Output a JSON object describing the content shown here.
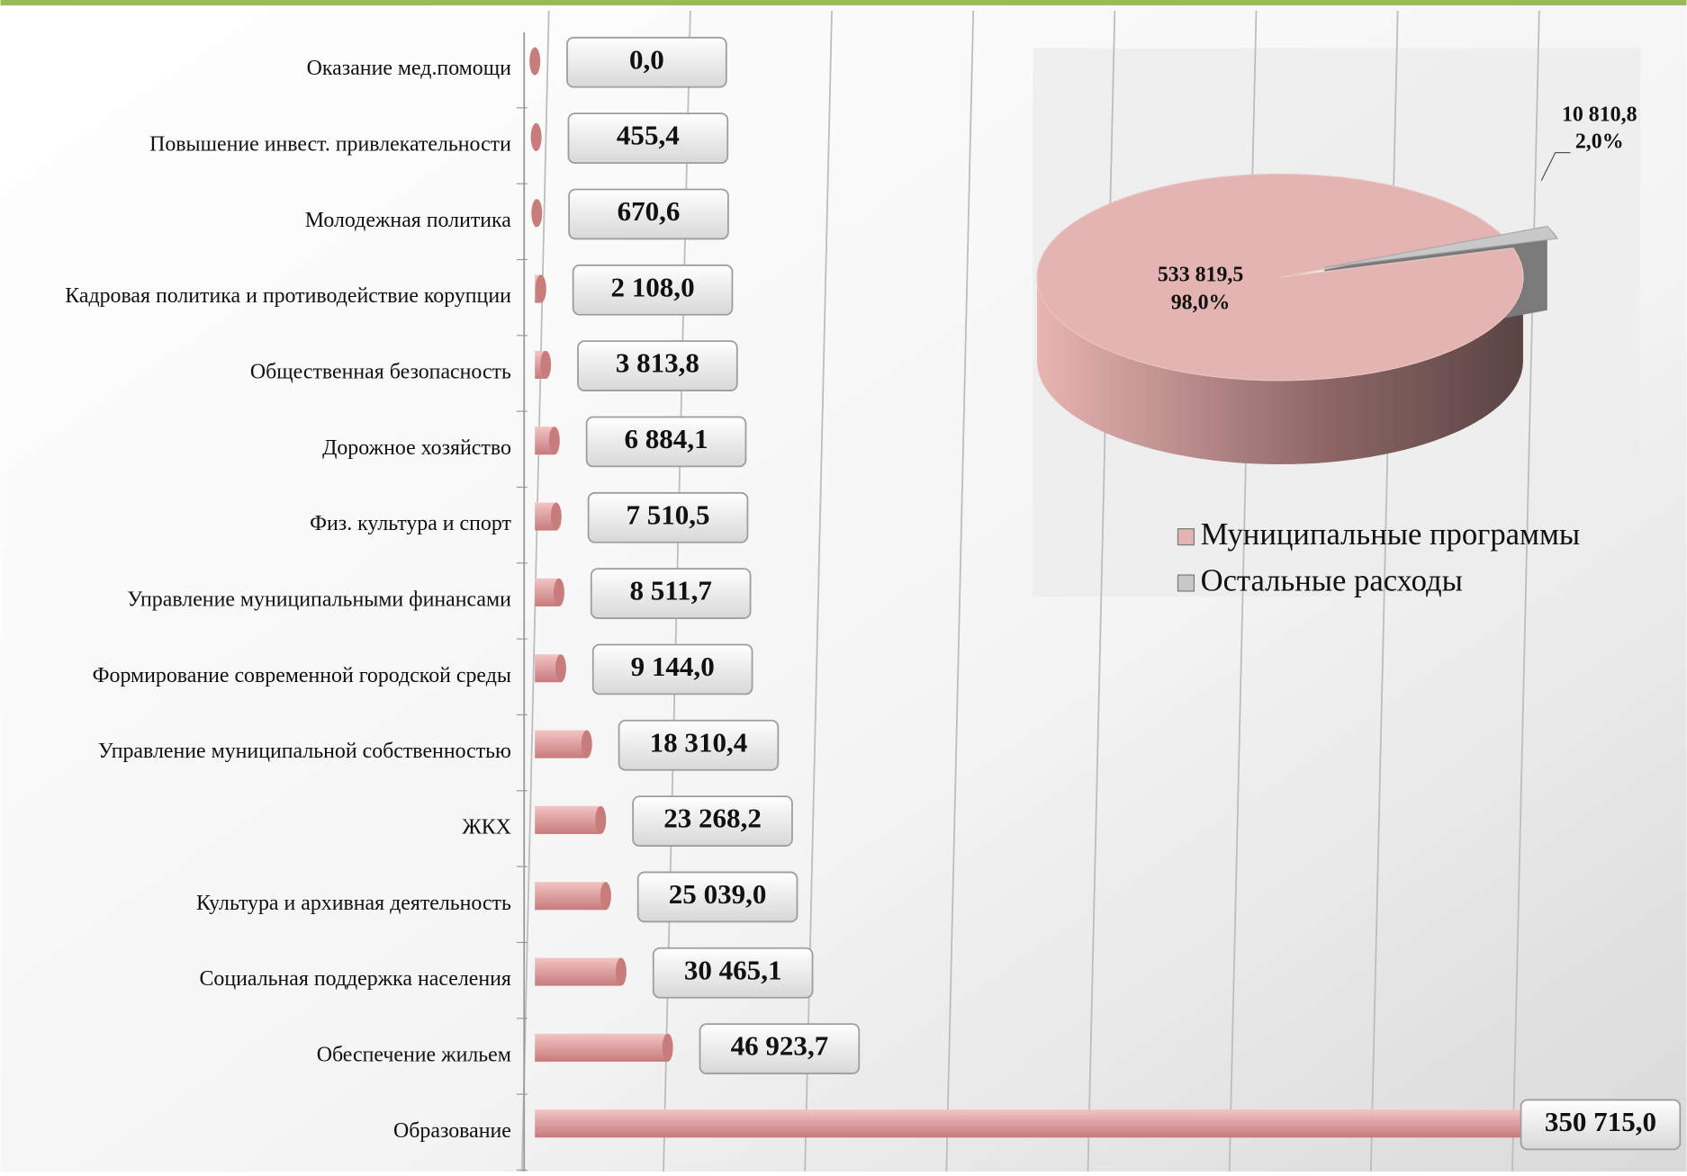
{
  "chart_data": [
    {
      "type": "bar",
      "orientation": "horizontal",
      "categories": [
        "Оказание мед.помощи",
        "Повышение инвест. привлекательности",
        "Молодежная политика",
        "Кадровая политика и противодействие корупции",
        "Общественная безопасность",
        "Дорожное хозяйство",
        "Физ. культура и спорт",
        "Управление муниципальными финансами",
        "Формирование современной городской среды",
        "Управление муниципальной собственностью",
        "ЖКХ",
        "Культура и архивная деятельность",
        "Социальная поддержка населения",
        "Обеспечение жильем",
        "Образование"
      ],
      "values": [
        0.0,
        455.4,
        670.6,
        2108.0,
        3813.8,
        6884.1,
        7510.5,
        8511.7,
        9144.0,
        18310.4,
        23268.2,
        25039.0,
        30465.1,
        46923.7,
        350715.0
      ],
      "value_labels": [
        "0,0",
        "455,4",
        "670,6",
        "2 108,0",
        "3 813,8",
        "6 884,1",
        "7 510,5",
        "8 511,7",
        "9 144,0",
        "18 310,4",
        "23 268,2",
        "25 039,0",
        "30 465,1",
        "46 923,7",
        "350 715,0"
      ],
      "color": "#e9a3a3",
      "xlim": [
        0,
        350000
      ],
      "xticks": [
        0,
        50000,
        100000,
        150000,
        200000,
        250000,
        300000,
        350000
      ],
      "grid": true
    },
    {
      "type": "pie",
      "categories": [
        "Муниципальные программы",
        "Остальные расходы"
      ],
      "values": [
        533819.5,
        10810.8
      ],
      "value_labels": [
        "533 819,5",
        "10 810,8"
      ],
      "percents": [
        98.0,
        2.0
      ],
      "percent_labels": [
        "98,0%",
        "2,0%"
      ],
      "colors": [
        "#e4b4b2",
        "#c8c8c8"
      ],
      "legend": "bottom"
    }
  ]
}
